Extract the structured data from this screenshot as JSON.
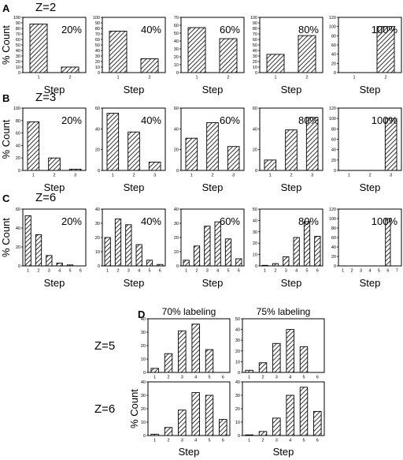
{
  "colors": {
    "bar_stroke": "#000000",
    "hatch": "#000000",
    "background": "#ffffff"
  },
  "chart_data": {
    "type": "bar",
    "ylabel": "% Count",
    "xlabel": "Step",
    "panels": [
      {
        "letter": "A",
        "zlabel": "Z=2",
        "row_label": "",
        "charts": [
          {
            "label": "20%",
            "categories": [
              "1",
              "2"
            ],
            "values": [
              88,
              10
            ],
            "ylim": [
              0,
              100
            ],
            "yticks": [
              0,
              10,
              20,
              30,
              40,
              50,
              60,
              70,
              80,
              90,
              100
            ]
          },
          {
            "label": "40%",
            "categories": [
              "1",
              "2"
            ],
            "values": [
              75,
              25
            ],
            "ylim": [
              0,
              100
            ],
            "yticks": [
              0,
              10,
              20,
              30,
              40,
              50,
              60,
              70,
              80,
              90,
              100
            ]
          },
          {
            "label": "60%",
            "categories": [
              "1",
              "2"
            ],
            "values": [
              57,
              43
            ],
            "ylim": [
              0,
              70
            ],
            "yticks": [
              0,
              10,
              20,
              30,
              40,
              50,
              60,
              70
            ]
          },
          {
            "label": "80%",
            "categories": [
              "1",
              "2"
            ],
            "values": [
              33,
              67
            ],
            "ylim": [
              0,
              100
            ],
            "yticks": [
              0,
              10,
              20,
              30,
              40,
              50,
              60,
              70,
              80,
              90,
              100
            ]
          },
          {
            "label": "100%",
            "categories": [
              "1",
              "2"
            ],
            "values": [
              0,
              100
            ],
            "ylim": [
              0,
              120
            ],
            "yticks": [
              0,
              20,
              40,
              60,
              80,
              100,
              120
            ]
          }
        ]
      },
      {
        "letter": "B",
        "zlabel": "Z=3",
        "row_label": "",
        "charts": [
          {
            "label": "20%",
            "categories": [
              "1",
              "2",
              "3"
            ],
            "values": [
              78,
              20,
              2
            ],
            "ylim": [
              0,
              100
            ],
            "yticks": [
              0,
              20,
              40,
              60,
              80,
              100
            ]
          },
          {
            "label": "40%",
            "categories": [
              "1",
              "2",
              "3"
            ],
            "values": [
              55,
              37,
              8
            ],
            "ylim": [
              0,
              60
            ],
            "yticks": [
              0,
              20,
              40,
              60
            ]
          },
          {
            "label": "60%",
            "categories": [
              "1",
              "2",
              "3"
            ],
            "values": [
              31,
              46,
              23
            ],
            "ylim": [
              0,
              60
            ],
            "yticks": [
              0,
              20,
              40,
              60
            ]
          },
          {
            "label": "80%",
            "categories": [
              "1",
              "2",
              "3"
            ],
            "values": [
              10,
              39,
              51
            ],
            "ylim": [
              0,
              60
            ],
            "yticks": [
              0,
              20,
              40,
              60
            ]
          },
          {
            "label": "100%",
            "categories": [
              "1",
              "2",
              "3"
            ],
            "values": [
              0,
              0,
              100
            ],
            "ylim": [
              0,
              120
            ],
            "yticks": [
              0,
              20,
              40,
              60,
              80,
              100,
              120
            ]
          }
        ]
      },
      {
        "letter": "C",
        "zlabel": "Z=6",
        "row_label": "",
        "charts": [
          {
            "label": "20%",
            "categories": [
              "1",
              "2",
              "3",
              "4",
              "5",
              "6"
            ],
            "values": [
              53,
              33,
              11,
              3,
              1,
              0
            ],
            "ylim": [
              0,
              60
            ],
            "yticks": [
              0,
              20,
              40,
              60
            ]
          },
          {
            "label": "40%",
            "categories": [
              "1",
              "2",
              "3",
              "4",
              "5",
              "6"
            ],
            "values": [
              20,
              33,
              29,
              15,
              4,
              1
            ],
            "ylim": [
              0,
              40
            ],
            "yticks": [
              0,
              10,
              20,
              30,
              40
            ]
          },
          {
            "label": "60%",
            "categories": [
              "1",
              "2",
              "3",
              "4",
              "5",
              "6"
            ],
            "values": [
              4,
              14,
              28,
              31,
              19,
              5
            ],
            "ylim": [
              0,
              40
            ],
            "yticks": [
              0,
              10,
              20,
              30,
              40
            ]
          },
          {
            "label": "80%",
            "categories": [
              "1",
              "2",
              "3",
              "4",
              "5",
              "6"
            ],
            "values": [
              0.5,
              2,
              8,
              25,
              39,
              26
            ],
            "ylim": [
              0,
              50
            ],
            "yticks": [
              0,
              10,
              20,
              30,
              40,
              50
            ]
          },
          {
            "label": "100%",
            "categories": [
              "1",
              "2",
              "3",
              "4",
              "5",
              "6",
              "7"
            ],
            "values": [
              0,
              0,
              0,
              0,
              0,
              100,
              0
            ],
            "ylim": [
              0,
              120
            ],
            "yticks": [
              0,
              20,
              40,
              60,
              80,
              100,
              120
            ]
          }
        ]
      },
      {
        "letter": "D",
        "zlabel": "",
        "row_label": "",
        "column_titles": [
          "70% labeling",
          "75% labeling"
        ],
        "rows": [
          {
            "row_label": "Z=5",
            "charts": [
              {
                "label": "",
                "categories": [
                  "1",
                  "2",
                  "3",
                  "4",
                  "5",
                  "6"
                ],
                "values": [
                  3,
                  14,
                  31,
                  36,
                  17,
                  0
                ],
                "ylim": [
                  0,
                  40
                ],
                "yticks": [
                  0,
                  10,
                  20,
                  30,
                  40
                ]
              },
              {
                "label": "",
                "categories": [
                  "1",
                  "2",
                  "3",
                  "4",
                  "5",
                  "6"
                ],
                "values": [
                  2,
                  9,
                  27,
                  40,
                  24,
                  0
                ],
                "ylim": [
                  0,
                  50
                ],
                "yticks": [
                  0,
                  10,
                  20,
                  30,
                  40,
                  50
                ]
              }
            ]
          },
          {
            "row_label": "Z=6",
            "charts": [
              {
                "label": "",
                "categories": [
                  "1",
                  "2",
                  "3",
                  "4",
                  "5",
                  "6"
                ],
                "values": [
                  1,
                  6,
                  19,
                  32,
                  30,
                  12
                ],
                "ylim": [
                  0,
                  40
                ],
                "yticks": [
                  0,
                  10,
                  20,
                  30,
                  40
                ]
              },
              {
                "label": "",
                "categories": [
                  "1",
                  "2",
                  "3",
                  "4",
                  "5",
                  "6"
                ],
                "values": [
                  0.5,
                  3,
                  13,
                  30,
                  36,
                  18
                ],
                "ylim": [
                  0,
                  40
                ],
                "yticks": [
                  0,
                  10,
                  20,
                  30,
                  40
                ]
              }
            ]
          }
        ]
      }
    ]
  }
}
